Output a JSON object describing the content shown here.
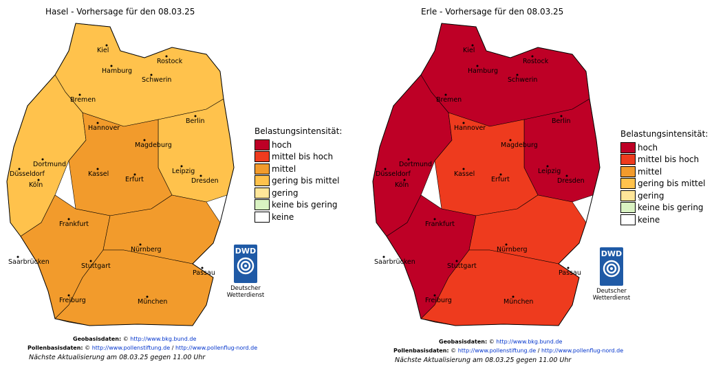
{
  "maps": [
    {
      "title": "Hasel - Vorhersage für den 08.03.25",
      "zones": {
        "north": "#FFC24C",
        "west": "#FFC24C",
        "southwest": "#F29B2C",
        "south": "#F29B2C",
        "southeast": "#F29B2C",
        "east": "#FFC24C",
        "center": "#F29B2C"
      }
    },
    {
      "title": "Erle - Vorhersage für den 08.03.25",
      "zones": {
        "north": "#BE0026",
        "west": "#BE0026",
        "southwest": "#BE0026",
        "south": "#EE3B1E",
        "southeast": "#EE3B1E",
        "east": "#BE0026",
        "center": "#EE3B1E"
      }
    }
  ],
  "cities": [
    {
      "name": "Kiel"
    },
    {
      "name": "Rostock"
    },
    {
      "name": "Hamburg"
    },
    {
      "name": "Schwerin"
    },
    {
      "name": "Bremen"
    },
    {
      "name": "Berlin"
    },
    {
      "name": "Hannover"
    },
    {
      "name": "Magdeburg"
    },
    {
      "name": "Dortmund"
    },
    {
      "name": "Düsseldorf"
    },
    {
      "name": "Köln"
    },
    {
      "name": "Kassel"
    },
    {
      "name": "Erfurt"
    },
    {
      "name": "Leipzig"
    },
    {
      "name": "Dresden"
    },
    {
      "name": "Frankfurt"
    },
    {
      "name": "Saarbrücken"
    },
    {
      "name": "Nürnberg"
    },
    {
      "name": "Stuttgart"
    },
    {
      "name": "Passau"
    },
    {
      "name": "Freiburg"
    },
    {
      "name": "München"
    }
  ],
  "legend": {
    "title": "Belastungsintensität:",
    "items": [
      {
        "label": "hoch",
        "color": "#BE0026"
      },
      {
        "label": "mittel bis hoch",
        "color": "#EE3B1E"
      },
      {
        "label": "mittel",
        "color": "#F29B2C"
      },
      {
        "label": "gering bis mittel",
        "color": "#FFC24C"
      },
      {
        "label": "gering",
        "color": "#FFE699"
      },
      {
        "label": "keine bis gering",
        "color": "#D9F2C2"
      },
      {
        "label": "keine",
        "color": "#FFFFFF"
      }
    ]
  },
  "dwd": {
    "logo": "DWD",
    "line1": "Deutscher",
    "line2": "Wetterdienst"
  },
  "footer": {
    "geo_label": "Geobasisdaten:",
    "geo_link": "http://www.bkg.bund.de",
    "pollen_label": "Pollenbasisdaten:",
    "pollen_link1": "http://www.pollenstiftung.de",
    "separator": "/",
    "pollen_link2": "http://www.pollenflug-nord.de",
    "update": "Nächste Aktualisierung am 08.03.25 gegen 11.00 Uhr"
  }
}
